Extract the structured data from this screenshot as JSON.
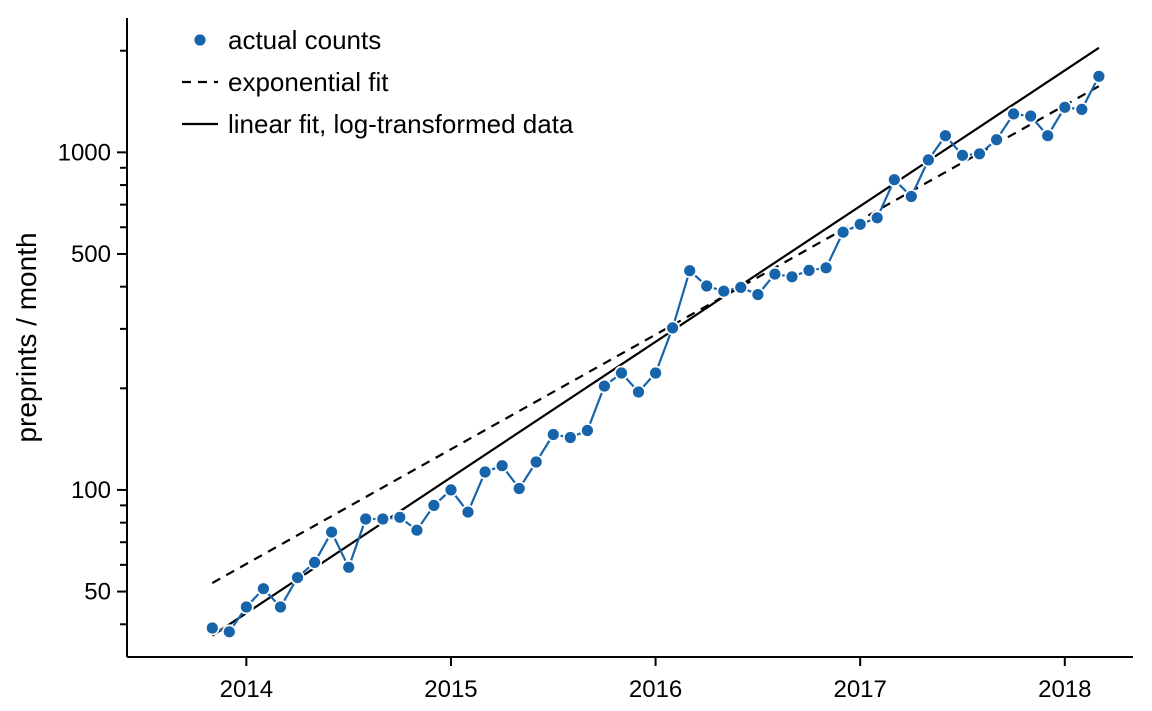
{
  "colors": {
    "series": "#1764ab",
    "fit": "#000000",
    "point_stroke": "#ffffff"
  },
  "chart_data": {
    "type": "line",
    "title": "",
    "xlabel": "",
    "ylabel": "preprints / month",
    "y_scale": "log",
    "xlim": [
      "2013-06",
      "2018-05"
    ],
    "ylim": [
      32,
      2500
    ],
    "x_ticks": [
      "2014",
      "2015",
      "2016",
      "2017",
      "2018"
    ],
    "y_ticks": [
      50,
      100,
      500,
      1000
    ],
    "y_tick_labels": [
      "50",
      "100",
      "500",
      "1000"
    ],
    "legend_position": "top-left",
    "legend": [
      {
        "label": "actual counts",
        "style": "points"
      },
      {
        "label": "exponential fit",
        "style": "dashed"
      },
      {
        "label": "linear fit, log-transformed data",
        "style": "solid"
      }
    ],
    "series": [
      {
        "name": "actual counts",
        "x": [
          "2013-11",
          "2013-12",
          "2014-01",
          "2014-02",
          "2014-03",
          "2014-04",
          "2014-05",
          "2014-06",
          "2014-07",
          "2014-08",
          "2014-09",
          "2014-10",
          "2014-11",
          "2014-12",
          "2015-01",
          "2015-02",
          "2015-03",
          "2015-04",
          "2015-05",
          "2015-06",
          "2015-07",
          "2015-08",
          "2015-09",
          "2015-10",
          "2015-11",
          "2015-12",
          "2016-01",
          "2016-02",
          "2016-03",
          "2016-04",
          "2016-05",
          "2016-06",
          "2016-07",
          "2016-08",
          "2016-09",
          "2016-10",
          "2016-11",
          "2016-12",
          "2017-01",
          "2017-02",
          "2017-03",
          "2017-04",
          "2017-05",
          "2017-06",
          "2017-07",
          "2017-08",
          "2017-09",
          "2017-10",
          "2017-11",
          "2017-12",
          "2018-01",
          "2018-02",
          "2018-03"
        ],
        "y": [
          39,
          38,
          45,
          51,
          45,
          55,
          61,
          75,
          59,
          82,
          82,
          83,
          76,
          90,
          100,
          86,
          113,
          118,
          101,
          121,
          146,
          143,
          150,
          203,
          222,
          195,
          222,
          302,
          446,
          402,
          388,
          398,
          379,
          436,
          428,
          447,
          455,
          580,
          612,
          640,
          830,
          740,
          950,
          1120,
          980,
          990,
          1090,
          1300,
          1280,
          1120,
          1360,
          1340,
          1680
        ]
      },
      {
        "name": "exponential fit",
        "x": [
          "2013-11",
          "2018-03"
        ],
        "y": [
          53,
          1570
        ]
      },
      {
        "name": "linear fit, log-transformed data",
        "x": [
          "2013-11",
          "2018-03"
        ],
        "y": [
          37,
          2040
        ]
      }
    ]
  }
}
